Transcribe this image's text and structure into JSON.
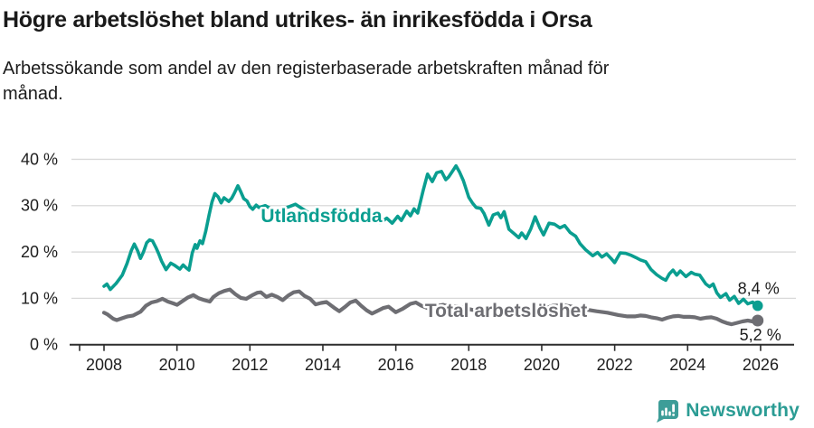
{
  "chart_data": {
    "type": "line",
    "title": "Högre arbetslöshet bland utrikes- än inrikesfödda i Orsa",
    "subtitle": "Arbetssökande som andel av den registerbaserade arbetskraften månad för månad.",
    "unit": "%",
    "grid": "horizontal-only",
    "legend_position": "inline-labels",
    "x_axis": {
      "ticks": [
        2008,
        2010,
        2012,
        2014,
        2016,
        2018,
        2020,
        2022,
        2024,
        2026
      ],
      "range": [
        2007.7,
        2026.9
      ]
    },
    "y_axis": {
      "ticks": [
        0,
        10,
        20,
        30,
        40
      ],
      "tick_suffix": " %",
      "range": [
        0,
        43
      ]
    },
    "colors": {
      "utlandsfodda": "#0a9e90",
      "total": "#6e6e73",
      "axis": "#2d2d2d",
      "gridline": "#d9d9d9",
      "value_label": "#1d1d1d"
    },
    "annotations": [
      {
        "text": "Utlandsfödda",
        "x": 2012.3,
        "y": 26.4,
        "color": "#0a9e90"
      },
      {
        "text": "Total arbetslöshet",
        "x": 2016.8,
        "y": 6.0,
        "color": "#6e6e73"
      }
    ],
    "series": [
      {
        "name": "Utlandsfödda",
        "color": "#0a9e90",
        "end_label": "8,4 %",
        "end_value": 8.4,
        "points": [
          [
            2008.0,
            12.6
          ],
          [
            2008.08,
            13.1
          ],
          [
            2008.17,
            11.9
          ],
          [
            2008.33,
            13.2
          ],
          [
            2008.5,
            15.0
          ],
          [
            2008.63,
            17.5
          ],
          [
            2008.75,
            20.3
          ],
          [
            2008.83,
            21.7
          ],
          [
            2008.92,
            20.3
          ],
          [
            2009.0,
            18.6
          ],
          [
            2009.08,
            20.0
          ],
          [
            2009.17,
            22.0
          ],
          [
            2009.25,
            22.6
          ],
          [
            2009.33,
            22.4
          ],
          [
            2009.42,
            21.0
          ],
          [
            2009.5,
            19.6
          ],
          [
            2009.58,
            18.0
          ],
          [
            2009.7,
            16.2
          ],
          [
            2009.83,
            17.6
          ],
          [
            2009.92,
            17.2
          ],
          [
            2010.08,
            16.3
          ],
          [
            2010.17,
            17.2
          ],
          [
            2010.25,
            16.6
          ],
          [
            2010.33,
            16.1
          ],
          [
            2010.42,
            19.8
          ],
          [
            2010.5,
            21.6
          ],
          [
            2010.55,
            20.8
          ],
          [
            2010.63,
            22.4
          ],
          [
            2010.7,
            21.8
          ],
          [
            2010.79,
            24.5
          ],
          [
            2010.88,
            28.0
          ],
          [
            2010.96,
            30.8
          ],
          [
            2011.04,
            32.6
          ],
          [
            2011.13,
            31.9
          ],
          [
            2011.21,
            30.6
          ],
          [
            2011.29,
            31.7
          ],
          [
            2011.42,
            30.9
          ],
          [
            2011.5,
            31.6
          ],
          [
            2011.58,
            32.8
          ],
          [
            2011.67,
            34.3
          ],
          [
            2011.75,
            33.0
          ],
          [
            2011.83,
            31.5
          ],
          [
            2011.92,
            31.0
          ],
          [
            2012.0,
            29.8
          ],
          [
            2012.08,
            29.2
          ],
          [
            2012.17,
            30.1
          ],
          [
            2012.25,
            29.6
          ],
          [
            2012.42,
            30.0
          ],
          [
            2012.58,
            29.3
          ],
          [
            2012.75,
            28.8
          ],
          [
            2012.92,
            29.4
          ],
          [
            2013.08,
            29.8
          ],
          [
            2013.25,
            30.3
          ],
          [
            2013.42,
            29.4
          ],
          [
            2013.58,
            28.6
          ],
          [
            2013.75,
            28.1
          ],
          [
            2013.92,
            28.4
          ],
          [
            2014.08,
            27.7
          ],
          [
            2014.25,
            27.3
          ],
          [
            2014.42,
            26.8
          ],
          [
            2014.58,
            27.4
          ],
          [
            2014.75,
            27.9
          ],
          [
            2014.92,
            27.2
          ],
          [
            2015.08,
            26.8
          ],
          [
            2015.25,
            26.4
          ],
          [
            2015.42,
            27.0
          ],
          [
            2015.58,
            26.3
          ],
          [
            2015.75,
            27.3
          ],
          [
            2015.9,
            26.2
          ],
          [
            2016.05,
            27.7
          ],
          [
            2016.15,
            26.8
          ],
          [
            2016.3,
            28.8
          ],
          [
            2016.4,
            27.8
          ],
          [
            2016.5,
            29.3
          ],
          [
            2016.6,
            28.4
          ],
          [
            2016.75,
            33.3
          ],
          [
            2016.87,
            36.8
          ],
          [
            2017.0,
            35.2
          ],
          [
            2017.12,
            37.1
          ],
          [
            2017.25,
            37.4
          ],
          [
            2017.37,
            35.6
          ],
          [
            2017.45,
            36.2
          ],
          [
            2017.55,
            37.4
          ],
          [
            2017.65,
            38.6
          ],
          [
            2017.75,
            37.2
          ],
          [
            2017.85,
            35.4
          ],
          [
            2018.0,
            31.8
          ],
          [
            2018.1,
            30.6
          ],
          [
            2018.2,
            29.6
          ],
          [
            2018.33,
            29.4
          ],
          [
            2018.42,
            28.3
          ],
          [
            2018.55,
            25.8
          ],
          [
            2018.67,
            28.0
          ],
          [
            2018.8,
            28.4
          ],
          [
            2018.88,
            27.4
          ],
          [
            2018.97,
            28.7
          ],
          [
            2019.1,
            24.9
          ],
          [
            2019.25,
            23.9
          ],
          [
            2019.37,
            23.1
          ],
          [
            2019.45,
            24.1
          ],
          [
            2019.57,
            22.9
          ],
          [
            2019.7,
            25.0
          ],
          [
            2019.82,
            27.6
          ],
          [
            2019.95,
            25.2
          ],
          [
            2020.05,
            23.7
          ],
          [
            2020.2,
            26.2
          ],
          [
            2020.35,
            26.0
          ],
          [
            2020.5,
            25.2
          ],
          [
            2020.63,
            25.7
          ],
          [
            2020.78,
            24.2
          ],
          [
            2020.93,
            23.4
          ],
          [
            2021.05,
            21.8
          ],
          [
            2021.2,
            20.5
          ],
          [
            2021.4,
            19.2
          ],
          [
            2021.53,
            19.9
          ],
          [
            2021.65,
            18.9
          ],
          [
            2021.78,
            19.6
          ],
          [
            2021.9,
            18.6
          ],
          [
            2022.0,
            17.7
          ],
          [
            2022.15,
            19.8
          ],
          [
            2022.3,
            19.7
          ],
          [
            2022.45,
            19.3
          ],
          [
            2022.58,
            18.8
          ],
          [
            2022.7,
            18.3
          ],
          [
            2022.85,
            17.9
          ],
          [
            2023.0,
            16.2
          ],
          [
            2023.15,
            15.1
          ],
          [
            2023.3,
            14.3
          ],
          [
            2023.4,
            13.9
          ],
          [
            2023.5,
            15.3
          ],
          [
            2023.6,
            16.1
          ],
          [
            2023.7,
            15.0
          ],
          [
            2023.8,
            15.9
          ],
          [
            2023.95,
            14.7
          ],
          [
            2024.1,
            15.6
          ],
          [
            2024.2,
            15.2
          ],
          [
            2024.33,
            15.0
          ],
          [
            2024.5,
            13.1
          ],
          [
            2024.6,
            12.5
          ],
          [
            2024.7,
            13.1
          ],
          [
            2024.8,
            11.2
          ],
          [
            2024.9,
            10.2
          ],
          [
            2025.05,
            11.0
          ],
          [
            2025.15,
            9.6
          ],
          [
            2025.28,
            10.4
          ],
          [
            2025.4,
            8.9
          ],
          [
            2025.53,
            9.8
          ],
          [
            2025.65,
            8.8
          ],
          [
            2025.78,
            9.2
          ],
          [
            2025.92,
            8.4
          ]
        ]
      },
      {
        "name": "Total arbetslöshet",
        "color": "#6e6e73",
        "end_label": "5,2 %",
        "end_value": 5.2,
        "points": [
          [
            2008.0,
            6.9
          ],
          [
            2008.1,
            6.5
          ],
          [
            2008.25,
            5.6
          ],
          [
            2008.35,
            5.3
          ],
          [
            2008.5,
            5.7
          ],
          [
            2008.65,
            6.1
          ],
          [
            2008.8,
            6.3
          ],
          [
            2009.0,
            7.1
          ],
          [
            2009.15,
            8.4
          ],
          [
            2009.3,
            9.1
          ],
          [
            2009.45,
            9.4
          ],
          [
            2009.6,
            9.9
          ],
          [
            2009.75,
            9.3
          ],
          [
            2009.9,
            8.9
          ],
          [
            2010.0,
            8.6
          ],
          [
            2010.15,
            9.4
          ],
          [
            2010.3,
            10.2
          ],
          [
            2010.45,
            10.7
          ],
          [
            2010.6,
            10.0
          ],
          [
            2010.75,
            9.6
          ],
          [
            2010.9,
            9.3
          ],
          [
            2011.0,
            10.3
          ],
          [
            2011.15,
            11.1
          ],
          [
            2011.3,
            11.6
          ],
          [
            2011.45,
            11.9
          ],
          [
            2011.6,
            10.9
          ],
          [
            2011.75,
            10.1
          ],
          [
            2011.9,
            9.9
          ],
          [
            2012.05,
            10.6
          ],
          [
            2012.2,
            11.2
          ],
          [
            2012.3,
            11.3
          ],
          [
            2012.45,
            10.3
          ],
          [
            2012.6,
            10.8
          ],
          [
            2012.75,
            10.3
          ],
          [
            2012.9,
            9.6
          ],
          [
            2013.05,
            10.6
          ],
          [
            2013.2,
            11.3
          ],
          [
            2013.35,
            11.5
          ],
          [
            2013.5,
            10.5
          ],
          [
            2013.65,
            9.9
          ],
          [
            2013.8,
            8.7
          ],
          [
            2013.95,
            9.0
          ],
          [
            2014.1,
            9.2
          ],
          [
            2014.3,
            8.0
          ],
          [
            2014.45,
            7.2
          ],
          [
            2014.6,
            8.1
          ],
          [
            2014.75,
            9.1
          ],
          [
            2014.9,
            9.5
          ],
          [
            2015.05,
            8.4
          ],
          [
            2015.2,
            7.4
          ],
          [
            2015.35,
            6.7
          ],
          [
            2015.5,
            7.3
          ],
          [
            2015.65,
            7.9
          ],
          [
            2015.8,
            8.2
          ],
          [
            2016.0,
            7.0
          ],
          [
            2016.2,
            7.8
          ],
          [
            2016.4,
            8.8
          ],
          [
            2016.55,
            9.1
          ],
          [
            2016.7,
            8.4
          ],
          [
            2016.9,
            7.8
          ],
          [
            2017.1,
            8.3
          ],
          [
            2017.3,
            8.6
          ],
          [
            2017.5,
            8.1
          ],
          [
            2017.7,
            8.3
          ],
          [
            2017.9,
            7.9
          ],
          [
            2018.1,
            7.5
          ],
          [
            2018.35,
            7.3
          ],
          [
            2018.6,
            7.6
          ],
          [
            2018.85,
            7.4
          ],
          [
            2019.1,
            7.1
          ],
          [
            2019.4,
            6.9
          ],
          [
            2019.7,
            7.2
          ],
          [
            2020.0,
            7.6
          ],
          [
            2020.3,
            8.4
          ],
          [
            2020.6,
            8.5
          ],
          [
            2020.9,
            8.1
          ],
          [
            2021.2,
            7.6
          ],
          [
            2021.5,
            7.2
          ],
          [
            2021.8,
            6.9
          ],
          [
            2022.1,
            6.4
          ],
          [
            2022.35,
            6.1
          ],
          [
            2022.55,
            6.1
          ],
          [
            2022.7,
            6.3
          ],
          [
            2022.85,
            6.2
          ],
          [
            2023.0,
            5.9
          ],
          [
            2023.15,
            5.7
          ],
          [
            2023.3,
            5.4
          ],
          [
            2023.45,
            5.8
          ],
          [
            2023.6,
            6.1
          ],
          [
            2023.75,
            6.2
          ],
          [
            2023.9,
            6.0
          ],
          [
            2024.05,
            6.0
          ],
          [
            2024.2,
            5.9
          ],
          [
            2024.35,
            5.6
          ],
          [
            2024.5,
            5.8
          ],
          [
            2024.65,
            5.9
          ],
          [
            2024.8,
            5.6
          ],
          [
            2024.95,
            5.0
          ],
          [
            2025.1,
            4.6
          ],
          [
            2025.2,
            4.4
          ],
          [
            2025.35,
            4.7
          ],
          [
            2025.5,
            5.0
          ],
          [
            2025.65,
            5.2
          ],
          [
            2025.78,
            5.0
          ],
          [
            2025.92,
            5.2
          ]
        ]
      }
    ]
  },
  "footer": {
    "brand": "Newsworthy"
  }
}
